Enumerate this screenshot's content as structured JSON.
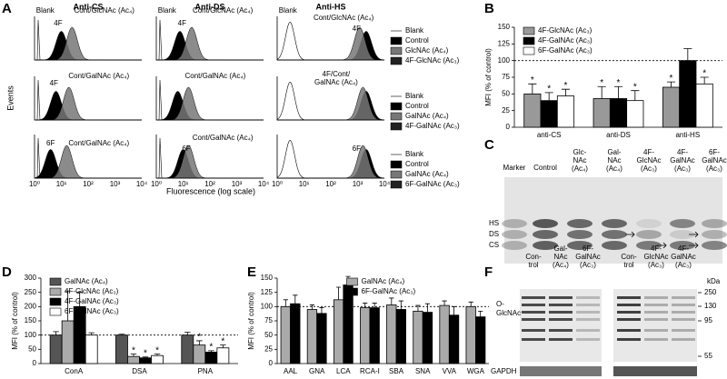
{
  "chart_data": [
    {
      "type": "bar",
      "label": "B",
      "y_label": "MFI (% of control)",
      "categories": [
        "anti-CS",
        "anti-DS",
        "anti-HS"
      ],
      "series": [
        {
          "name": "4F-GlcNAc (Ac₃)",
          "color": "#999999",
          "values": [
            50,
            43,
            60
          ],
          "errors": [
            15,
            18,
            8
          ],
          "stars": [
            "*",
            "*",
            "*"
          ]
        },
        {
          "name": "4F-GalNAc (Ac₃)",
          "color": "#000000",
          "values": [
            40,
            43,
            100
          ],
          "errors": [
            12,
            18,
            18
          ],
          "stars": [
            "*",
            "*",
            null
          ]
        },
        {
          "name": "6F-GalNAc (Ac₃)",
          "color": "#ffffff",
          "values": [
            47,
            40,
            65
          ],
          "errors": [
            10,
            15,
            10
          ],
          "stars": [
            "*",
            "*",
            "*"
          ]
        }
      ],
      "ylim": [
        0,
        150
      ],
      "yticks": [
        0,
        25,
        50,
        75,
        100,
        125,
        150
      ],
      "reference_line": 100,
      "legend": "upper left"
    },
    {
      "type": "bar",
      "label": "D",
      "y_label": "MFI (% of control)",
      "categories": [
        "ConA",
        "DSA",
        "PNA"
      ],
      "series": [
        {
          "name": "GalNAc (Ac₄)",
          "color": "#555555",
          "values": [
            100,
            100,
            100
          ],
          "errors": [
            12,
            3,
            10
          ],
          "stars": [
            null,
            null,
            null
          ]
        },
        {
          "name": "4F-GlcNAc (Ac₃)",
          "color": "#aaaaaa",
          "values": [
            150,
            25,
            65
          ],
          "errors": [
            105,
            8,
            15
          ],
          "stars": [
            null,
            "*",
            "*"
          ]
        },
        {
          "name": "4F-GalNAc (Ac₃)",
          "color": "#000000",
          "values": [
            200,
            20,
            40
          ],
          "errors": [
            50,
            3,
            5
          ],
          "stars": [
            null,
            "*",
            "*"
          ]
        },
        {
          "name": "6F-GalNAc (Ac₃)",
          "color": "#ffffff",
          "values": [
            100,
            28,
            55
          ],
          "errors": [
            8,
            5,
            10
          ],
          "stars": [
            null,
            "*",
            "*"
          ]
        }
      ],
      "ylim": [
        0,
        300
      ],
      "yticks": [
        0,
        50,
        100,
        150,
        200,
        250,
        300
      ],
      "reference_line": 100,
      "legend": "upper left"
    },
    {
      "type": "bar",
      "label": "E",
      "y_label": "MFI (% of control)",
      "categories": [
        "AAL",
        "GNA",
        "LCA",
        "RCA-I",
        "SBA",
        "SNA",
        "VVA",
        "WGA"
      ],
      "series": [
        {
          "name": "GalNAc (Ac₄)",
          "color": "#aaaaaa",
          "values": [
            100,
            95,
            112,
            98,
            103,
            92,
            102,
            100
          ],
          "errors": [
            12,
            8,
            22,
            8,
            12,
            10,
            8,
            8
          ]
        },
        {
          "name": "6F-GalNAc (Ac₃)",
          "color": "#000000",
          "values": [
            105,
            88,
            138,
            98,
            95,
            90,
            85,
            82
          ],
          "errors": [
            15,
            10,
            15,
            8,
            15,
            15,
            15,
            10
          ]
        }
      ],
      "ylim": [
        0,
        150
      ],
      "yticks": [
        0,
        25,
        50,
        75,
        100,
        125,
        150
      ],
      "reference_line": 100,
      "legend": "upper center"
    }
  ],
  "flow": {
    "label": "A",
    "columns": [
      "Anti-CS",
      "Anti-DS",
      "Anti-HS"
    ],
    "y_label": "Events",
    "x_label": "Fluorescence (log scale)",
    "ticks": [
      "10⁰",
      "10¹",
      "10²",
      "10³",
      "10⁴"
    ],
    "rows": [
      {
        "legend": [
          {
            "name": "Blank",
            "color": "#ffffff"
          },
          {
            "name": "Control",
            "color": "#000000"
          },
          {
            "name": "GlcNAc (Ac₄)",
            "color": "#777777"
          },
          {
            "name": "4F-GlcNAc (Ac₃)",
            "color": "#222222"
          }
        ],
        "cells": [
          [
            [
              "Blank"
            ],
            [
              "4F"
            ],
            [
              "Cont/GlcNAc (Ac₄)"
            ]
          ],
          [
            [
              "Blank"
            ],
            [
              "4F"
            ],
            [
              "Cont/GlcNAc (Ac₄)"
            ]
          ],
          [
            [
              "Blank"
            ],
            [
              "Cont/GlcNAc (Ac₄)"
            ],
            [
              "4F"
            ]
          ]
        ]
      },
      {
        "legend": [
          {
            "name": "Blank",
            "color": "#ffffff"
          },
          {
            "name": "Control",
            "color": "#000000"
          },
          {
            "name": "GalNAc (Ac₄)",
            "color": "#777777"
          },
          {
            "name": "4F-GalNAc (Ac₃)",
            "color": "#222222"
          }
        ],
        "cells": [
          [
            [
              "4F"
            ],
            [
              "Cont/GalNAc (Ac₄)"
            ]
          ],
          [
            [
              "Cont/GalNAc (Ac₄)"
            ]
          ],
          [
            [
              "4F/Cont/",
              "GalNAc (Ac₄)"
            ]
          ]
        ]
      },
      {
        "legend": [
          {
            "name": "Blank",
            "color": "#ffffff"
          },
          {
            "name": "Control",
            "color": "#000000"
          },
          {
            "name": "GalNAc (Ac₄)",
            "color": "#777777"
          },
          {
            "name": "6F-GalNAc (Ac₃)",
            "color": "#222222"
          }
        ],
        "cells": [
          [
            [
              "6F"
            ],
            [
              "Cont/GalNAc (Ac₄)"
            ]
          ],
          [
            [
              "Cont/GalNAc (Ac₄)"
            ],
            [
              "6F"
            ]
          ],
          [
            [
              "6F"
            ]
          ]
        ]
      }
    ]
  },
  "gel": {
    "label": "C",
    "lanes": [
      [
        "Marker"
      ],
      [
        "Control"
      ],
      [
        "Glc-",
        "NAc",
        "(Ac₄)"
      ],
      [
        "Gal-",
        "NAc",
        "(Ac₄)"
      ],
      [
        "4F-",
        "GlcNAc",
        "(Ac₃)"
      ],
      [
        "4F-",
        "GalNAc",
        "(Ac₃)"
      ],
      [
        "6F-",
        "GalNAc",
        "(Ac₃)"
      ]
    ],
    "bands": [
      "HS",
      "DS",
      "CS"
    ]
  },
  "blot": {
    "label": "F",
    "lanes_left": [
      [
        "Con-",
        "trol"
      ],
      [
        "Gal-",
        "NAc",
        "(Ac₄)"
      ],
      [
        "6F-",
        "GalNAc",
        "(Ac₃)"
      ]
    ],
    "lanes_right": [
      [
        "Con-",
        "trol"
      ],
      [
        "4F-",
        "GlcNAc",
        "(Ac₃)"
      ],
      [
        "4F-",
        "GalNAc",
        "(Ac₃)"
      ]
    ],
    "target": [
      "O-",
      "GlcNAc"
    ],
    "loading": "GAPDH",
    "unit": "kDa",
    "markers": [
      "250",
      "130",
      "95",
      "55"
    ]
  }
}
